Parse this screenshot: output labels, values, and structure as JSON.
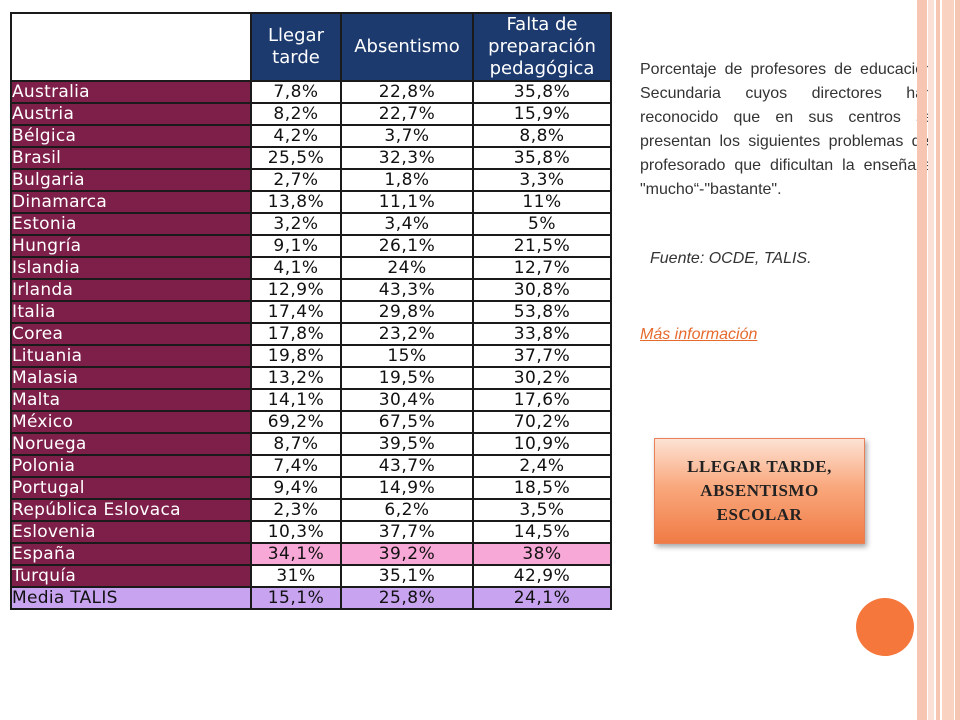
{
  "table": {
    "headers": [
      "Llegar tarde",
      "Absentismo",
      "Falta de preparación pedagógica"
    ],
    "rows": [
      {
        "country": "Australia",
        "late": "7,8%",
        "absent": "22,8%",
        "prep": "35,8%"
      },
      {
        "country": "Austria",
        "late": "8,2%",
        "absent": "22,7%",
        "prep": "15,9%"
      },
      {
        "country": "Bélgica",
        "late": "4,2%",
        "absent": "3,7%",
        "prep": "8,8%"
      },
      {
        "country": "Brasil",
        "late": "25,5%",
        "absent": "32,3%",
        "prep": "35,8%"
      },
      {
        "country": "Bulgaria",
        "late": "2,7%",
        "absent": "1,8%",
        "prep": "3,3%"
      },
      {
        "country": "Dinamarca",
        "late": "13,8%",
        "absent": "11,1%",
        "prep": "11%"
      },
      {
        "country": "Estonia",
        "late": "3,2%",
        "absent": "3,4%",
        "prep": "5%"
      },
      {
        "country": "Hungría",
        "late": "9,1%",
        "absent": "26,1%",
        "prep": "21,5%"
      },
      {
        "country": "Islandia",
        "late": "4,1%",
        "absent": "24%",
        "prep": "12,7%"
      },
      {
        "country": "Irlanda",
        "late": "12,9%",
        "absent": "43,3%",
        "prep": "30,8%"
      },
      {
        "country": "Italia",
        "late": "17,4%",
        "absent": "29,8%",
        "prep": "53,8%"
      },
      {
        "country": "Corea",
        "late": "17,8%",
        "absent": "23,2%",
        "prep": "33,8%"
      },
      {
        "country": "Lituania",
        "late": "19,8%",
        "absent": "15%",
        "prep": "37,7%"
      },
      {
        "country": "Malasia",
        "late": "13,2%",
        "absent": "19,5%",
        "prep": "30,2%"
      },
      {
        "country": "Malta",
        "late": "14,1%",
        "absent": "30,4%",
        "prep": "17,6%"
      },
      {
        "country": "México",
        "late": "69,2%",
        "absent": "67,5%",
        "prep": "70,2%"
      },
      {
        "country": "Noruega",
        "late": "8,7%",
        "absent": "39,5%",
        "prep": "10,9%"
      },
      {
        "country": "Polonia",
        "late": "7,4%",
        "absent": "43,7%",
        "prep": "2,4%"
      },
      {
        "country": "Portugal",
        "late": "9,4%",
        "absent": "14,9%",
        "prep": "18,5%"
      },
      {
        "country": "República Eslovaca",
        "late": "2,3%",
        "absent": "6,2%",
        "prep": "3,5%"
      },
      {
        "country": "Eslovenia",
        "late": "10,3%",
        "absent": "37,7%",
        "prep": "14,5%"
      },
      {
        "country": "España",
        "late": "34,1%",
        "absent": "39,2%",
        "prep": "38%",
        "highlight": "spain"
      },
      {
        "country": "Turquía",
        "late": "31%",
        "absent": "35,1%",
        "prep": "42,9%"
      },
      {
        "country": "Media TALIS",
        "late": "15,1%",
        "absent": "25,8%",
        "prep": "24,1%",
        "highlight": "media"
      }
    ]
  },
  "side": {
    "description": "Porcentaje de profesores de educación Secundaria cuyos directores han reconocido que en sus centros se presentan los siguientes problemas del profesorado que dificultan la enseñaza \"mucho“-\"bastante\".",
    "source": "Fuente: OCDE, TALIS.",
    "link_label": "Más información"
  },
  "callout": {
    "text": "LLEGAR TARDE,\nABSENTISMO\nESCOLAR"
  },
  "colors": {
    "header_bg": "#1c3a6e",
    "country_bg": "#7e1f4a",
    "spain_highlight": "#f7a8d6",
    "media_highlight": "#c8a4f0",
    "accent_orange": "#f5773c"
  }
}
